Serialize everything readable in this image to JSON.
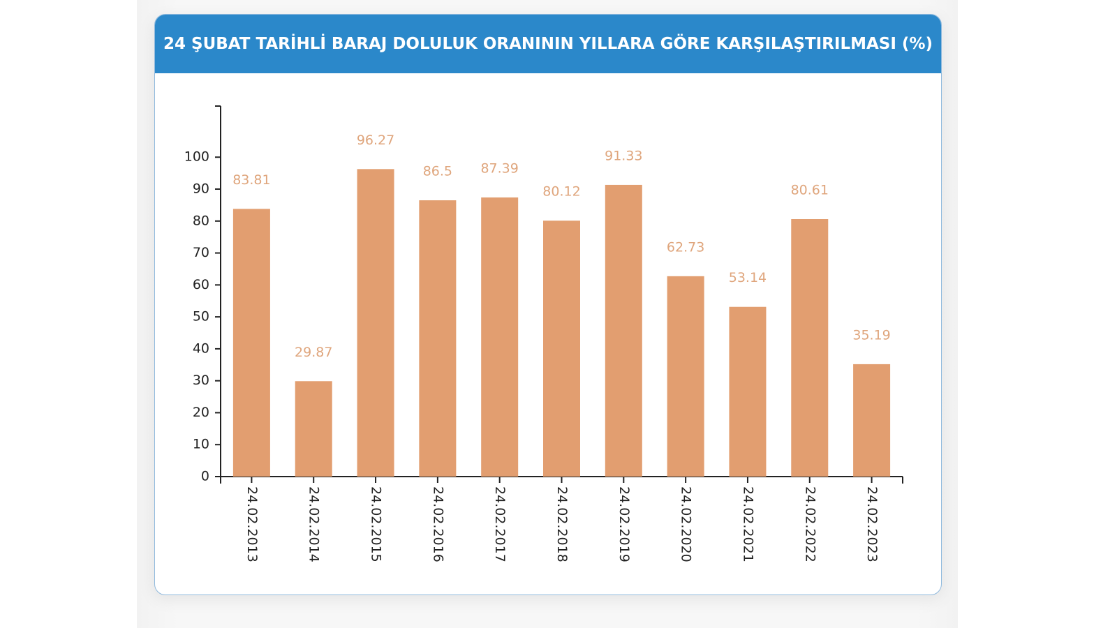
{
  "chart_data": {
    "type": "bar",
    "title": "24 ŞUBAT TARİHLİ BARAJ DOLULUK ORANININ YILLARA GÖRE KARŞILAŞTIRILMASI (%)",
    "categories": [
      "24.02.2013",
      "24.02.2014",
      "24.02.2015",
      "24.02.2016",
      "24.02.2017",
      "24.02.2018",
      "24.02.2019",
      "24.02.2020",
      "24.02.2021",
      "24.02.2022",
      "24.02.2023"
    ],
    "values": [
      83.81,
      29.87,
      96.27,
      86.5,
      87.39,
      80.12,
      91.33,
      62.73,
      53.14,
      80.61,
      35.19
    ],
    "color": "#e29e70",
    "ylim": [
      0,
      116
    ],
    "yticks": [
      0,
      10,
      20,
      30,
      40,
      50,
      60,
      70,
      80,
      90,
      100
    ]
  }
}
